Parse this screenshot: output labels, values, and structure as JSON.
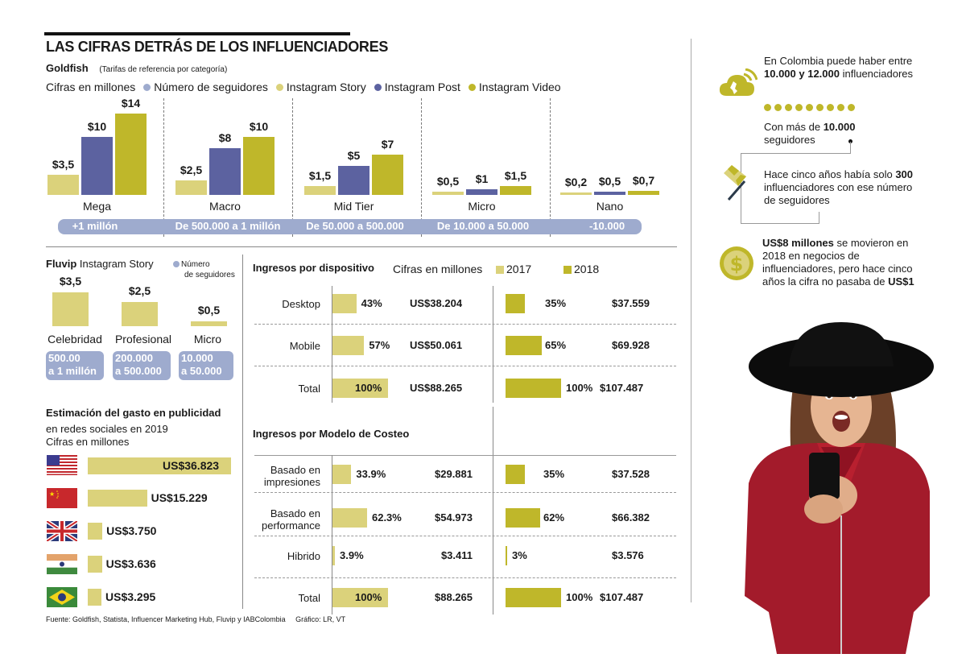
{
  "title": "LAS CIFRAS DETRÁS DE LOS INFLUENCIADORES",
  "goldfish": {
    "source_label": "Goldfish",
    "note": "(Tarifas de referencia por categoría)",
    "units": "Cifras en millones",
    "legend": [
      {
        "label": "Número de seguidores",
        "color": "#9eabce"
      },
      {
        "label": "Instagram Story",
        "color": "#dbd27b"
      },
      {
        "label": "Instagram Post",
        "color": "#5c62a0"
      },
      {
        "label": "Instagram Video",
        "color": "#bfb72a"
      }
    ]
  },
  "chart_data": [
    {
      "type": "bar",
      "title": "Goldfish (Tarifas de referencia por categoría)",
      "ylabel": "Cifras en millones",
      "categories": [
        "Mega",
        "Macro",
        "Mid Tier",
        "Micro",
        "Nano"
      ],
      "follower_ranges": [
        "+1 millón",
        "De 500.000 a 1 millón",
        "De 50.000 a 500.000",
        "De 10.000 a 50.000",
        "-10.000"
      ],
      "series": [
        {
          "name": "Instagram Story",
          "color": "#dbd27b",
          "values": [
            3.5,
            2.5,
            1.5,
            0.5,
            0.2
          ],
          "labels": [
            "$3,5",
            "$2,5",
            "$1,5",
            "$0,5",
            "$0,2"
          ]
        },
        {
          "name": "Instagram Post",
          "color": "#5c62a0",
          "values": [
            10,
            8,
            5,
            1,
            0.5
          ],
          "labels": [
            "$10",
            "$8",
            "$5",
            "$1",
            "$0,5"
          ]
        },
        {
          "name": "Instagram Video",
          "color": "#bfb72a",
          "values": [
            14,
            10,
            7,
            1.5,
            0.7
          ],
          "labels": [
            "$14",
            "$10",
            "$7",
            "$1,5",
            "$0,7"
          ]
        }
      ],
      "ylim": [
        0,
        14
      ]
    },
    {
      "type": "bar",
      "title": "Fluvip Instagram Story",
      "categories": [
        "Celebridad",
        "Profesional",
        "Micro"
      ],
      "follower_ranges": [
        "500.00 a 1 millón",
        "200.000 a 500.000",
        "10.000 a 50.000"
      ],
      "values": [
        3.5,
        2.5,
        0.5
      ],
      "labels": [
        "$3,5",
        "$2,5",
        "$0,5"
      ]
    },
    {
      "type": "bar",
      "title": "Estimación del gasto en publicidad en redes sociales en 2019",
      "ylabel": "Cifras en millones",
      "categories": [
        "Estados Unidos",
        "China",
        "Reino Unido",
        "India",
        "Brasil"
      ],
      "values": [
        36823,
        15229,
        3750,
        3636,
        3295
      ],
      "labels": [
        "US$36.823",
        "US$15.229",
        "US$3.750",
        "US$3.636",
        "US$3.295"
      ]
    },
    {
      "type": "table",
      "title": "Ingresos por dispositivo",
      "units": "Cifras en millones",
      "rows": [
        {
          "label": "Desktop",
          "p2017": 43,
          "p2017_label": "43%",
          "v2017": "US$38.204",
          "p2018": 35,
          "p2018_label": "35%",
          "v2018": "$37.559"
        },
        {
          "label": "Mobile",
          "p2017": 57,
          "p2017_label": "57%",
          "v2017": "US$50.061",
          "p2018": 65,
          "p2018_label": "65%",
          "v2018": "$69.928"
        },
        {
          "label": "Total",
          "p2017": 100,
          "p2017_label": "100%",
          "v2017": "US$88.265",
          "p2018": 100,
          "p2018_label": "100%",
          "v2018": "$107.487"
        }
      ]
    },
    {
      "type": "table",
      "title": "Ingresos por Modelo de Costeo",
      "rows": [
        {
          "label": "Basado en impresiones",
          "p2017": 33.9,
          "p2017_label": "33.9%",
          "v2017": "$29.881",
          "p2018": 35,
          "p2018_label": "35%",
          "v2018": "$37.528"
        },
        {
          "label": "Basado en performance",
          "p2017": 62.3,
          "p2017_label": "62.3%",
          "v2017": "$54.973",
          "p2018": 62,
          "p2018_label": "62%",
          "v2018": "$66.382"
        },
        {
          "label": "Hibrido",
          "p2017": 3.9,
          "p2017_label": "3.9%",
          "v2017": "$3.411",
          "p2018": 3,
          "p2018_label": "3%",
          "v2018": "$3.576"
        },
        {
          "label": "Total",
          "p2017": 100,
          "p2017_label": "100%",
          "v2017": "$88.265",
          "p2018": 100,
          "p2018_label": "100%",
          "v2018": "$107.487"
        }
      ]
    }
  ],
  "fluvip": {
    "brand": "Fluvip",
    "subtitle": "Instagram Story",
    "legend_line1": "Número",
    "legend_line2": "de seguidores",
    "pill_lines": [
      [
        "500.00",
        "a 1 millón"
      ],
      [
        "200.000",
        "a 500.000"
      ],
      [
        "10.000",
        "a 50.000"
      ]
    ]
  },
  "estimacion": {
    "heading": "Estimación del gasto en publicidad",
    "line2": "en redes sociales en 2019",
    "line3": "Cifras en millones"
  },
  "dispositivo": {
    "heading": "Ingresos por dispositivo",
    "units": "Cifras en millones",
    "legend_2017": "2017",
    "legend_2018": "2018",
    "color_2017": "#dbd27b",
    "color_2018": "#bfb72a"
  },
  "costeo": {
    "heading": "Ingresos por Modelo de Costeo",
    "row_labels": [
      [
        "Basado en",
        "impresiones"
      ],
      [
        "Basado en",
        "performance"
      ],
      [
        "Hibrido"
      ],
      [
        "Total"
      ]
    ]
  },
  "sidebar": {
    "fact1_pre": "En Colombia puede haber entre ",
    "fact1_bold": "10.000 y 12.000",
    "fact1_post": " influenciadores",
    "fact2_pre": "Con más de ",
    "fact2_bold": "10.000",
    "fact2_post": " seguidores",
    "fact3_pre": "Hace cinco años había solo ",
    "fact3_bold": "300",
    "fact3_post": " influenciadores con ese número de seguidores",
    "fact4_bold": "US$8 millones",
    "fact4_mid": " se movieron en 2018 en negocios de influenciadores, pero hace cinco años la cifra no pasaba de ",
    "fact4_bold2": "US$1",
    "dots_count": 9
  },
  "footer": {
    "source": "Fuente: Goldfish, Statista, Influencer Marketing Hub, Fluvip y IABColombia",
    "credit": "Gráfico: LR, VT"
  }
}
